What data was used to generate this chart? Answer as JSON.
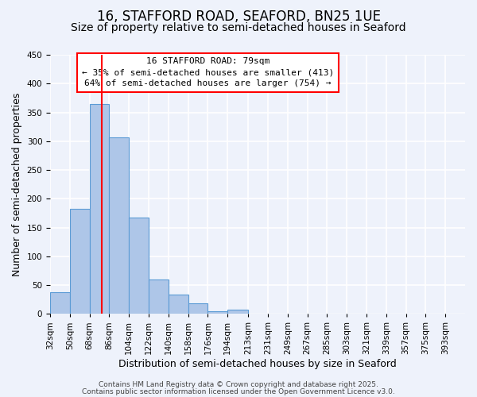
{
  "title": "16, STAFFORD ROAD, SEAFORD, BN25 1UE",
  "subtitle": "Size of property relative to semi-detached houses in Seaford",
  "xlabel": "Distribution of semi-detached houses by size in Seaford",
  "ylabel": "Number of semi-detached properties",
  "bin_labels": [
    "32sqm",
    "50sqm",
    "68sqm",
    "86sqm",
    "104sqm",
    "122sqm",
    "140sqm",
    "158sqm",
    "176sqm",
    "194sqm",
    "213sqm",
    "231sqm",
    "249sqm",
    "267sqm",
    "285sqm",
    "303sqm",
    "321sqm",
    "339sqm",
    "357sqm",
    "375sqm",
    "393sqm"
  ],
  "bar_values": [
    38,
    182,
    365,
    307,
    167,
    60,
    34,
    19,
    5,
    7,
    0,
    0,
    0,
    0,
    0,
    0,
    0,
    0,
    0,
    0,
    0
  ],
  "bar_color": "#aec6e8",
  "bar_edge_color": "#5b9bd5",
  "vline_x": 79,
  "bin_edges": [
    32,
    50,
    68,
    86,
    104,
    122,
    140,
    158,
    176,
    194,
    213,
    231,
    249,
    267,
    285,
    303,
    321,
    339,
    357,
    375,
    393,
    411
  ],
  "ylim": [
    0,
    450
  ],
  "yticks": [
    0,
    50,
    100,
    150,
    200,
    250,
    300,
    350,
    400,
    450
  ],
  "annotation_title": "16 STAFFORD ROAD: 79sqm",
  "annotation_line1": "← 35% of semi-detached houses are smaller (413)",
  "annotation_line2": "64% of semi-detached houses are larger (754) →",
  "footer_line1": "Contains HM Land Registry data © Crown copyright and database right 2025.",
  "footer_line2": "Contains public sector information licensed under the Open Government Licence v3.0.",
  "background_color": "#eef2fb",
  "grid_color": "#ffffff",
  "title_fontsize": 12,
  "subtitle_fontsize": 10,
  "axis_label_fontsize": 9,
  "tick_fontsize": 7.5,
  "annotation_fontsize": 8,
  "footer_fontsize": 6.5
}
